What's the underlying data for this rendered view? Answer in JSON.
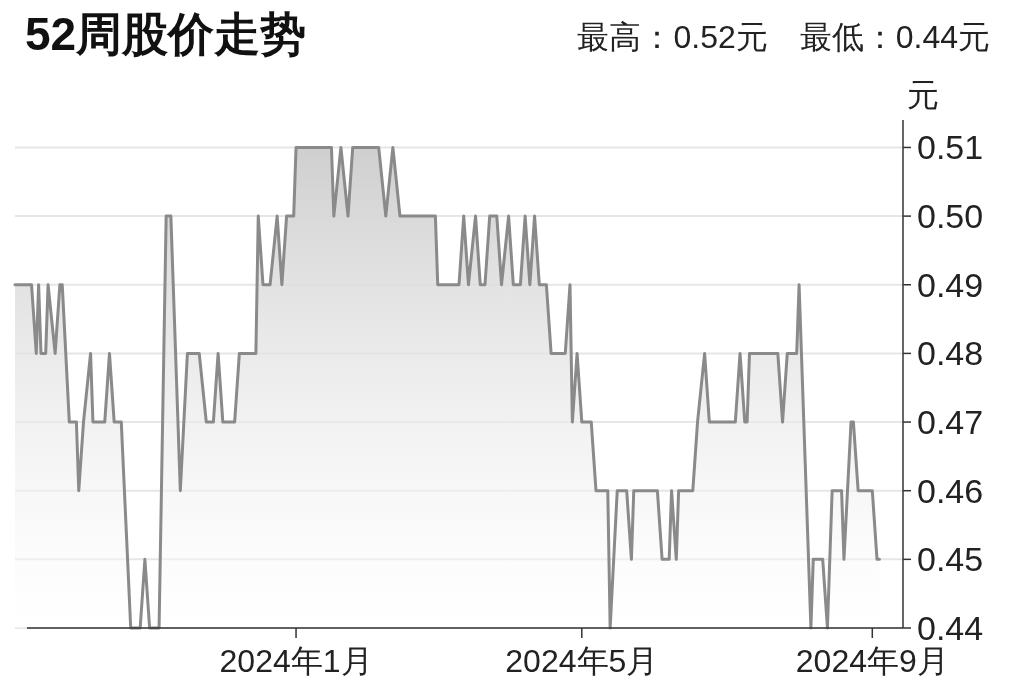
{
  "chart_data": {
    "type": "area",
    "title": "52周股价走势",
    "subtitle": "最高：0.52元　最低：0.44元",
    "ylabel": "元",
    "series": [
      {
        "color": "#8a8a8a",
        "x": [
          "2023-09-04",
          "2023-09-11",
          "2023-09-13",
          "2023-09-14",
          "2023-09-15",
          "2023-09-17",
          "2023-09-18",
          "2023-09-21",
          "2023-09-23",
          "2023-09-24",
          "2023-09-27",
          "2023-09-30",
          "2023-10-01",
          "2023-10-03",
          "2023-10-06",
          "2023-10-07",
          "2023-10-12",
          "2023-10-14",
          "2023-10-16",
          "2023-10-19",
          "2023-10-23",
          "2023-10-27",
          "2023-10-29",
          "2023-10-31",
          "2023-11-04",
          "2023-11-07",
          "2023-11-09",
          "2023-11-13",
          "2023-11-16",
          "2023-11-21",
          "2023-11-24",
          "2023-11-27",
          "2023-11-29",
          "2023-12-01",
          "2023-12-06",
          "2023-12-08",
          "2023-12-15",
          "2023-12-16",
          "2023-12-18",
          "2023-12-21",
          "2023-12-24",
          "2023-12-26",
          "2023-12-28",
          "2023-12-31",
          "2024-01-01",
          "2024-01-16",
          "2024-01-17",
          "2024-01-20",
          "2024-01-23",
          "2024-01-25",
          "2024-02-05",
          "2024-02-08",
          "2024-02-11",
          "2024-02-14",
          "2024-02-29",
          "2024-03-01",
          "2024-03-10",
          "2024-03-12",
          "2024-03-14",
          "2024-03-17",
          "2024-03-19",
          "2024-03-21",
          "2024-03-23",
          "2024-03-26",
          "2024-03-28",
          "2024-03-31",
          "2024-04-02",
          "2024-04-05",
          "2024-04-07",
          "2024-04-09",
          "2024-04-11",
          "2024-04-13",
          "2024-04-16",
          "2024-04-18",
          "2024-04-24",
          "2024-04-26",
          "2024-04-27",
          "2024-04-29",
          "2024-05-01",
          "2024-05-05",
          "2024-05-07",
          "2024-05-12",
          "2024-05-13",
          "2024-05-16",
          "2024-05-20",
          "2024-05-22",
          "2024-05-23",
          "2024-06-02",
          "2024-06-04",
          "2024-06-07",
          "2024-06-08",
          "2024-06-10",
          "2024-06-11",
          "2024-06-17",
          "2024-06-19",
          "2024-06-22",
          "2024-06-24",
          "2024-07-05",
          "2024-07-07",
          "2024-07-09",
          "2024-07-10",
          "2024-07-11",
          "2024-07-23",
          "2024-07-25",
          "2024-07-27",
          "2024-07-31",
          "2024-08-01",
          "2024-08-06",
          "2024-08-07",
          "2024-08-11",
          "2024-08-13",
          "2024-08-15",
          "2024-08-19",
          "2024-08-20",
          "2024-08-23",
          "2024-08-24",
          "2024-08-26",
          "2024-09-01",
          "2024-09-03",
          "2024-09-04"
        ],
        "values": [
          0.49,
          0.49,
          0.48,
          0.49,
          0.48,
          0.48,
          0.49,
          0.48,
          0.49,
          0.49,
          0.47,
          0.47,
          0.46,
          0.47,
          0.48,
          0.47,
          0.47,
          0.48,
          0.47,
          0.47,
          0.44,
          0.44,
          0.45,
          0.44,
          0.44,
          0.5,
          0.5,
          0.46,
          0.48,
          0.48,
          0.47,
          0.47,
          0.48,
          0.47,
          0.47,
          0.48,
          0.48,
          0.5,
          0.49,
          0.49,
          0.5,
          0.49,
          0.5,
          0.5,
          0.51,
          0.51,
          0.5,
          0.51,
          0.5,
          0.51,
          0.51,
          0.5,
          0.51,
          0.5,
          0.5,
          0.49,
          0.49,
          0.5,
          0.49,
          0.5,
          0.49,
          0.49,
          0.5,
          0.5,
          0.49,
          0.5,
          0.49,
          0.49,
          0.5,
          0.49,
          0.5,
          0.49,
          0.49,
          0.48,
          0.48,
          0.49,
          0.47,
          0.48,
          0.47,
          0.47,
          0.46,
          0.46,
          0.44,
          0.46,
          0.46,
          0.45,
          0.46,
          0.46,
          0.45,
          0.45,
          0.46,
          0.45,
          0.46,
          0.46,
          0.47,
          0.48,
          0.47,
          0.47,
          0.48,
          0.47,
          0.47,
          0.48,
          0.48,
          0.47,
          0.48,
          0.48,
          0.49,
          0.44,
          0.45,
          0.45,
          0.44,
          0.46,
          0.46,
          0.45,
          0.47,
          0.47,
          0.46,
          0.46,
          0.45,
          0.45
        ]
      }
    ],
    "xlim": [
      "2023-09-04",
      "2024-09-14"
    ],
    "xticks": [
      {
        "value": "2024-01-01",
        "label": "2024年1月"
      },
      {
        "value": "2024-05-01",
        "label": "2024年5月"
      },
      {
        "value": "2024-09-01",
        "label": "2024年9月"
      }
    ],
    "ylim": [
      0.44,
      0.514
    ],
    "yticks": [
      0.44,
      0.45,
      0.46,
      0.47,
      0.48,
      0.49,
      {
        "value": 0.5,
        "label": "0.50"
      },
      0.51
    ],
    "grid": "y"
  }
}
